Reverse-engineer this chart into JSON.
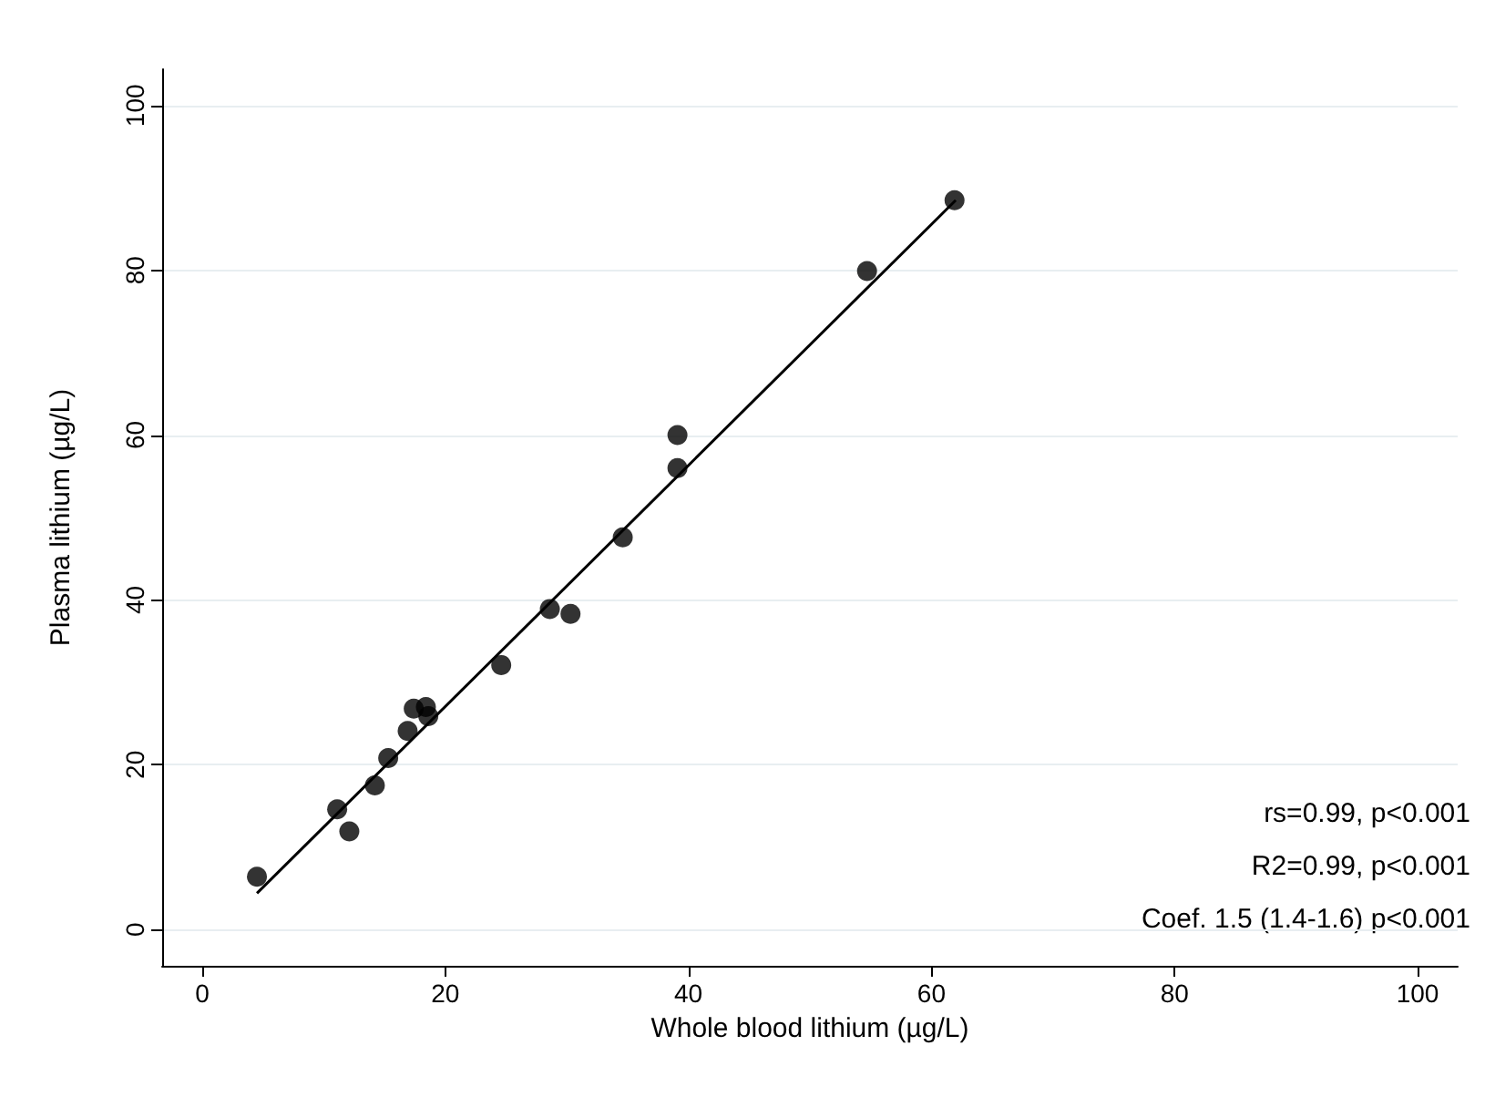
{
  "chart_data": {
    "type": "scatter",
    "xlabel": "Whole blood lithium (µg/L)",
    "ylabel": "Plasma lithium (µg/L)",
    "xlim": [
      -3.3,
      103.3
    ],
    "ylim": [
      -4.4,
      104.4
    ],
    "xticks": [
      0,
      20,
      40,
      60,
      80,
      100
    ],
    "yticks": [
      0,
      20,
      40,
      60,
      80,
      100
    ],
    "grid": "y",
    "marker": "circle",
    "series": [
      {
        "color": "#000000",
        "x": [
          4.5,
          11.1,
          12.1,
          14.2,
          15.3,
          16.9,
          17.4,
          18.4,
          18.6,
          24.6,
          28.6,
          30.3,
          34.6,
          39.1,
          39.1,
          54.7,
          61.9
        ],
        "values": [
          6.4,
          14.6,
          11.9,
          17.5,
          20.8,
          24.1,
          26.8,
          27.0,
          25.9,
          32.1,
          38.9,
          38.3,
          47.6,
          56.0,
          60.0,
          79.9,
          88.5
        ]
      },
      {
        "type": "line",
        "marker": "none",
        "line_style": "solid",
        "color": "#000000",
        "x": [
          4.5,
          62
        ],
        "values": [
          4.4,
          88.5
        ]
      }
    ],
    "annotations": [
      "rs=0.99, p<0.001",
      "R2=0.99, p<0.001",
      "Coef. 1.5 (1.4-1.6) p<0.001"
    ]
  }
}
